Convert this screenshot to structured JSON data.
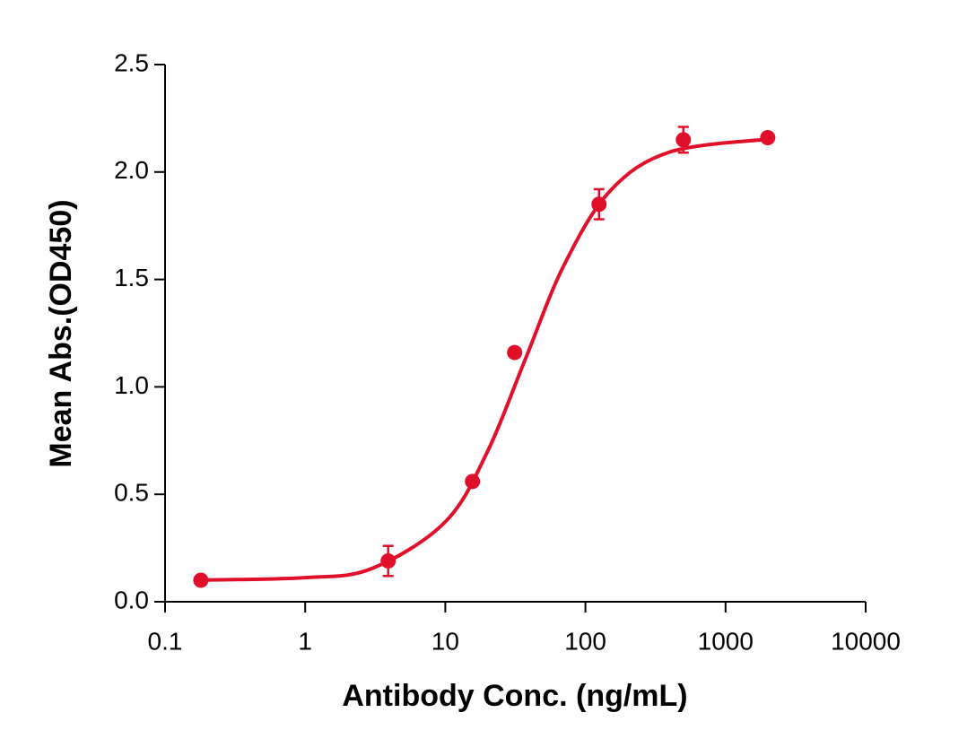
{
  "chart_data": {
    "type": "scatter",
    "xlabel": "Antibody Conc. (ng/mL)",
    "ylabel": "Mean Abs.(OD450)",
    "xscale": "log",
    "xlim": [
      0.1,
      10000
    ],
    "xticks": [
      0.1,
      1,
      10,
      100,
      1000,
      10000
    ],
    "ylim": [
      0,
      2.5
    ],
    "yticks": [
      {
        "value": 0,
        "label": "0.0"
      },
      {
        "value": 0.5,
        "label": "0.5"
      },
      {
        "value": 1,
        "label": "1.0"
      },
      {
        "value": 1.5,
        "label": "1.5"
      },
      {
        "value": 2,
        "label": "2.0"
      },
      {
        "value": 2.5,
        "label": "2.5"
      }
    ],
    "grid": false,
    "series": [
      {
        "color": "#e0102a",
        "x": [
          0.18,
          3.91,
          15.63,
          31.25,
          125,
          500,
          2000
        ],
        "values": [
          0.1,
          0.19,
          0.56,
          1.16,
          1.85,
          2.15,
          2.16
        ],
        "errors": [
          null,
          0.07,
          null,
          null,
          0.07,
          0.06,
          null
        ]
      }
    ],
    "fit": {
      "color": "#e0102a",
      "x": [
        0.18,
        1,
        3,
        10,
        20,
        37.3,
        70,
        150,
        400,
        2000
      ],
      "values": [
        0.101,
        0.112,
        0.155,
        0.372,
        0.699,
        1.13,
        1.564,
        1.912,
        2.093,
        2.153
      ]
    }
  }
}
